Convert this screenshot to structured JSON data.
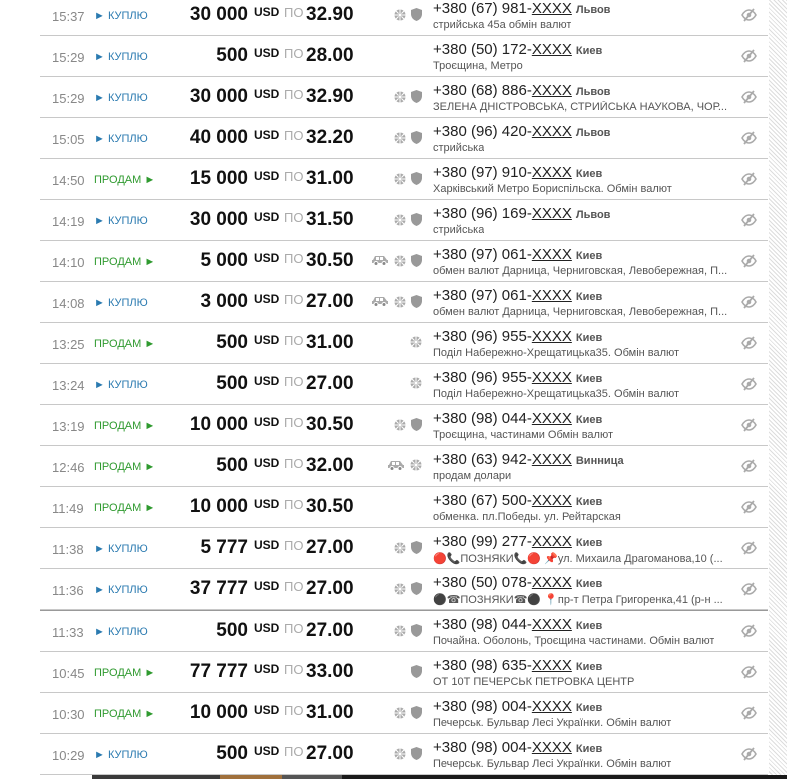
{
  "labels": {
    "currency": "USD",
    "per": "ПО",
    "buy": "► КУПЛЮ",
    "sell": "ПРОДАМ ►"
  },
  "colors": {
    "buy": "#2a7ab0",
    "sell": "#2f9a2f",
    "icon": "#999999"
  },
  "rows": [
    {
      "time": "15:37",
      "type": "buy",
      "amount": "30 000",
      "rate": "32.90",
      "icons": [
        "wheel-icon",
        "shield-icon"
      ],
      "phone": "+380 (67) 981-",
      "masked": "XXXX",
      "city": "Львов",
      "note": "стрийська 45а обмін валют"
    },
    {
      "time": "15:29",
      "type": "buy",
      "amount": "500",
      "rate": "28.00",
      "icons": [],
      "phone": "+380 (50) 172-",
      "masked": "XXXX",
      "city": "Киев",
      "note": "Троєщина, Метро"
    },
    {
      "time": "15:29",
      "type": "buy",
      "amount": "30 000",
      "rate": "32.90",
      "icons": [
        "wheel-icon",
        "shield-icon"
      ],
      "phone": "+380 (68) 886-",
      "masked": "XXXX",
      "city": "Львов",
      "note": "ЗЕЛЕНА ДНІСТРОВСЬКА, СТРИЙСЬКА НАУКОВА, ЧОР..."
    },
    {
      "time": "15:05",
      "type": "buy",
      "amount": "40 000",
      "rate": "32.20",
      "icons": [
        "wheel-icon",
        "shield-icon"
      ],
      "phone": "+380 (96) 420-",
      "masked": "XXXX",
      "city": "Львов",
      "note": "стрийська"
    },
    {
      "time": "14:50",
      "type": "sell",
      "amount": "15 000",
      "rate": "31.00",
      "icons": [
        "wheel-icon",
        "shield-icon"
      ],
      "phone": "+380 (97) 910-",
      "masked": "XXXX",
      "city": "Киев",
      "note": "Харківський Метро Бориспільска. Обмін валют"
    },
    {
      "time": "14:19",
      "type": "buy",
      "amount": "30 000",
      "rate": "31.50",
      "icons": [
        "wheel-icon",
        "shield-icon"
      ],
      "phone": "+380 (96) 169-",
      "masked": "XXXX",
      "city": "Львов",
      "note": "стрийська"
    },
    {
      "time": "14:10",
      "type": "sell",
      "amount": "5 000",
      "rate": "30.50",
      "icons": [
        "car-icon",
        "wheel-icon",
        "shield-icon"
      ],
      "phone": "+380 (97) 061-",
      "masked": "XXXX",
      "city": "Киев",
      "note": "обмен валют Дарница, Черниговская, Левобережная, П..."
    },
    {
      "time": "14:08",
      "type": "buy",
      "amount": "3 000",
      "rate": "27.00",
      "icons": [
        "car-icon",
        "wheel-icon",
        "shield-icon"
      ],
      "phone": "+380 (97) 061-",
      "masked": "XXXX",
      "city": "Киев",
      "note": "обмен валют Дарница, Черниговская, Левобережная, П..."
    },
    {
      "time": "13:25",
      "type": "sell",
      "amount": "500",
      "rate": "31.00",
      "icons": [
        "wheel-icon"
      ],
      "phone": "+380 (96) 955-",
      "masked": "XXXX",
      "city": "Киев",
      "note": "Поділ Набережно-Хрещатицька35. Обмін валют"
    },
    {
      "time": "13:24",
      "type": "buy",
      "amount": "500",
      "rate": "27.00",
      "icons": [
        "wheel-icon"
      ],
      "phone": "+380 (96) 955-",
      "masked": "XXXX",
      "city": "Киев",
      "note": "Поділ Набережно-Хрещатицька35. Обмін валют"
    },
    {
      "time": "13:19",
      "type": "sell",
      "amount": "10 000",
      "rate": "30.50",
      "icons": [
        "wheel-icon",
        "shield-icon"
      ],
      "phone": "+380 (98) 044-",
      "masked": "XXXX",
      "city": "Киев",
      "note": "Троєщина, частинами Обмін валют"
    },
    {
      "time": "12:46",
      "type": "sell",
      "amount": "500",
      "rate": "32.00",
      "icons": [
        "car-icon",
        "wheel-icon"
      ],
      "phone": "+380 (63) 942-",
      "masked": "XXXX",
      "city": "Винница",
      "note": "продам долари"
    },
    {
      "time": "11:49",
      "type": "sell",
      "amount": "10 000",
      "rate": "30.50",
      "icons": [],
      "phone": "+380 (67) 500-",
      "masked": "XXXX",
      "city": "Киев",
      "note": "обменка. пл.Победы. ул. Рейтарская"
    },
    {
      "time": "11:38",
      "type": "buy",
      "amount": "5 777",
      "rate": "27.00",
      "icons": [
        "wheel-icon",
        "shield-icon"
      ],
      "phone": "+380 (99) 277-",
      "masked": "XXXX",
      "city": "Киев",
      "note": "🔴📞ПОЗНЯКИ📞🔴 📌ул. Михаила Драгоманова,10 (..."
    },
    {
      "time": "11:36",
      "type": "buy",
      "amount": "37 777",
      "rate": "27.00",
      "icons": [
        "wheel-icon",
        "shield-icon"
      ],
      "phone": "+380 (50) 078-",
      "masked": "XXXX",
      "city": "Киев",
      "note": "⚫☎ПОЗНЯКИ☎⚫ 📍пр-т Петра Григоренка,41 (р-н ..."
    },
    {
      "time": "11:33",
      "type": "buy",
      "amount": "500",
      "rate": "27.00",
      "icons": [
        "wheel-icon",
        "shield-icon"
      ],
      "phone": "+380 (98) 044-",
      "masked": "XXXX",
      "city": "Киев",
      "note": "Почайна. Оболонь, Троєщина частинами. Обмін валют"
    },
    {
      "time": "10:45",
      "type": "sell",
      "amount": "77 777",
      "rate": "33.00",
      "icons": [
        "shield-icon"
      ],
      "phone": "+380 (98) 635-",
      "masked": "XXXX",
      "city": "Киев",
      "note": "ОТ 10Т ПЕЧЕРСЬК ПЕТРОВКА ЦЕНТР"
    },
    {
      "time": "10:30",
      "type": "sell",
      "amount": "10 000",
      "rate": "31.00",
      "icons": [
        "wheel-icon",
        "shield-icon"
      ],
      "phone": "+380 (98) 004-",
      "masked": "XXXX",
      "city": "Киев",
      "note": "Печерськ. Бульвар Лесі Українки. Обмін валют"
    },
    {
      "time": "10:29",
      "type": "buy",
      "amount": "500",
      "rate": "27.00",
      "icons": [
        "wheel-icon",
        "shield-icon"
      ],
      "phone": "+380 (98) 004-",
      "masked": "XXXX",
      "city": "Киев",
      "note": "Печерськ. Бульвар Лесі Українки. Обмін валют"
    }
  ]
}
